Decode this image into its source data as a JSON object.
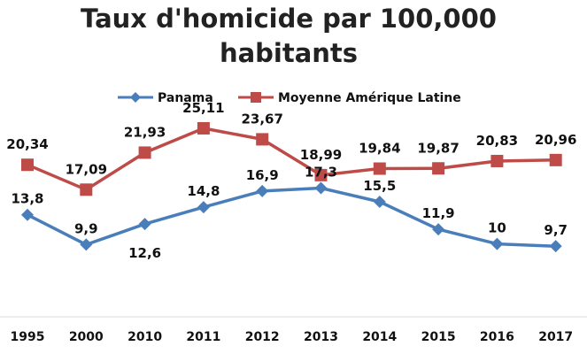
{
  "chart_data": {
    "type": "line",
    "title_line1": "Taux d'homicide par 100,000",
    "title_line2": "habitants",
    "xlabel": "",
    "ylabel": "",
    "categories": [
      "1995",
      "2000",
      "2010",
      "2011",
      "2012",
      "2013",
      "2014",
      "2015",
      "2016",
      "2017"
    ],
    "ylim": [
      0,
      28
    ],
    "grid": false,
    "legend_position": "top",
    "series": [
      {
        "name": "Panama",
        "values": [
          13.8,
          9.9,
          12.6,
          14.8,
          16.9,
          17.3,
          15.5,
          11.9,
          10,
          9.7
        ],
        "labels": [
          "13,8",
          "9,9",
          "12,6",
          "14,8",
          "16,9",
          "17,3",
          "15,5",
          "11,9",
          "10",
          "9,7"
        ],
        "color": "#4a7ebb",
        "marker": "diamond"
      },
      {
        "name": "Moyenne Amérique Latine",
        "values": [
          20.34,
          17.09,
          21.93,
          25.11,
          23.67,
          18.99,
          19.84,
          19.87,
          20.83,
          20.96
        ],
        "labels": [
          "20,34",
          "17,09",
          "21,93",
          "25,11",
          "23,67",
          "18,99",
          "19,84",
          "19,87",
          "20,83",
          "20,96"
        ],
        "color": "#be4b48",
        "marker": "square"
      }
    ]
  }
}
